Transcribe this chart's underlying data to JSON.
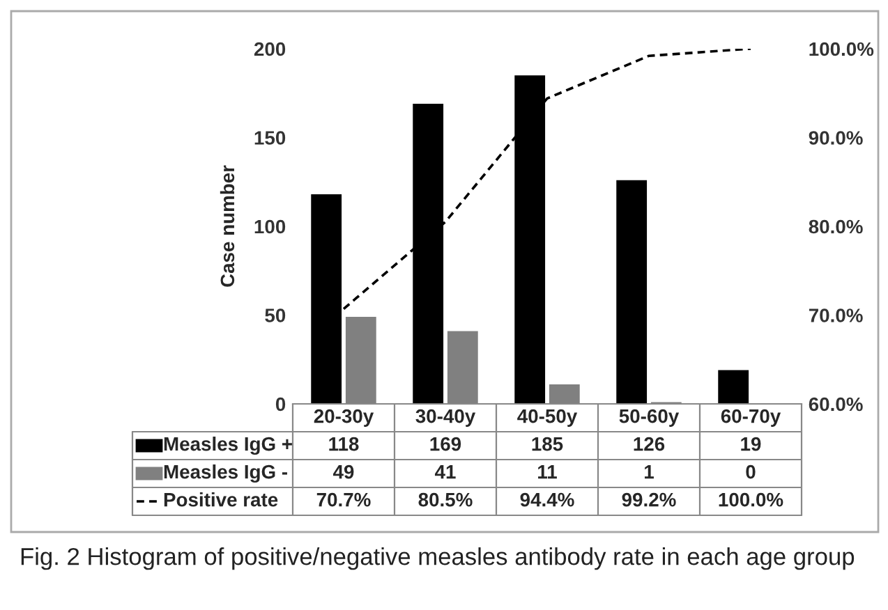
{
  "chart_data": {
    "type": "bar",
    "ylabel": "Case number",
    "categories": [
      "20-30y",
      "30-40y",
      "40-50y",
      "50-60y",
      "60-70y"
    ],
    "series": [
      {
        "name": "Measles IgG +",
        "color": "#000000",
        "values": [
          118,
          169,
          185,
          126,
          19
        ],
        "value_labels": [
          "118",
          "169",
          "185",
          "126",
          "19"
        ]
      },
      {
        "name": "Measles IgG -",
        "color": "#808080",
        "values": [
          49,
          41,
          11,
          1,
          0
        ],
        "value_labels": [
          "49",
          "41",
          "11",
          "1",
          "0"
        ]
      },
      {
        "name": "Positive rate",
        "type": "line",
        "axis": "y2",
        "color": "#000000",
        "line_style": "dashed",
        "marker": "none",
        "values": [
          70.7,
          80.5,
          94.4,
          99.2,
          100.0
        ],
        "value_labels": [
          "70.7%",
          "80.5%",
          "94.4%",
          "99.2%",
          "100.0%"
        ]
      }
    ],
    "ylim": [
      0,
      200
    ],
    "yticks": [
      0,
      50,
      100,
      150,
      200
    ],
    "y2lim": [
      60,
      100
    ],
    "y2ticks": [
      {
        "value": 60,
        "label": "60.0%"
      },
      {
        "value": 70,
        "label": "70.0%"
      },
      {
        "value": 80,
        "label": "80.0%"
      },
      {
        "value": 90,
        "label": "90.0%"
      },
      {
        "value": 100,
        "label": "100.0%"
      }
    ],
    "grid": false,
    "legend": "bottom left",
    "annotations": [
      "Fig. 2 Histogram of positive/negative measles antibody rate in each age group"
    ]
  }
}
